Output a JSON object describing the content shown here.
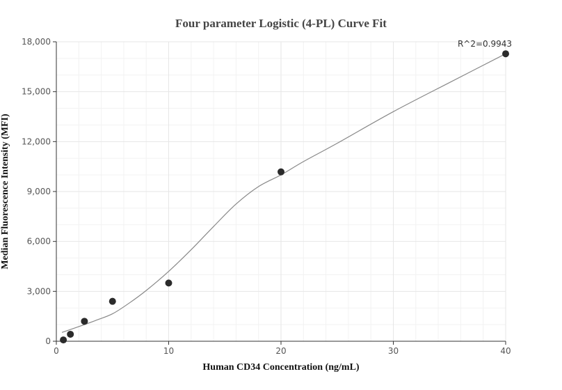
{
  "chart_data": {
    "type": "scatter",
    "title": "Four parameter Logistic (4-PL) Curve Fit",
    "xlabel": "Human CD34 Concentration (ng/mL)",
    "ylabel": "Median Fluorescence Intensity (MFI)",
    "xlim": [
      0,
      40
    ],
    "ylim": [
      0,
      18000
    ],
    "x_ticks": [
      0,
      10,
      20,
      30,
      40
    ],
    "x_tick_labels": [
      "0",
      "10",
      "20",
      "30",
      "40"
    ],
    "y_ticks": [
      0,
      3000,
      6000,
      9000,
      12000,
      15000,
      18000
    ],
    "y_tick_labels": [
      "0",
      "3,000",
      "6,000",
      "9,000",
      "12,000",
      "15,000",
      "18,000"
    ],
    "grid": true,
    "series": [
      {
        "x": [
          0.625,
          1.25,
          2.5,
          5,
          10,
          20,
          40
        ],
        "y": [
          80,
          420,
          1200,
          2400,
          3500,
          10180,
          17280
        ]
      }
    ],
    "fit_curve": {
      "x": [
        0.5,
        2,
        3.5,
        5,
        6.5,
        8,
        10,
        12,
        14,
        16,
        18,
        20,
        22,
        25,
        30,
        35,
        40
      ],
      "y": [
        530,
        880,
        1250,
        1650,
        2300,
        3050,
        4200,
        5500,
        6900,
        8250,
        9300,
        10000,
        10800,
        11900,
        13800,
        15550,
        17280
      ]
    },
    "annotation": "R^2=0.9943",
    "colors": {
      "point": "#2b2b2b",
      "curve": "#888888",
      "grid": "#e6e6e6",
      "axis": "#333333"
    }
  }
}
